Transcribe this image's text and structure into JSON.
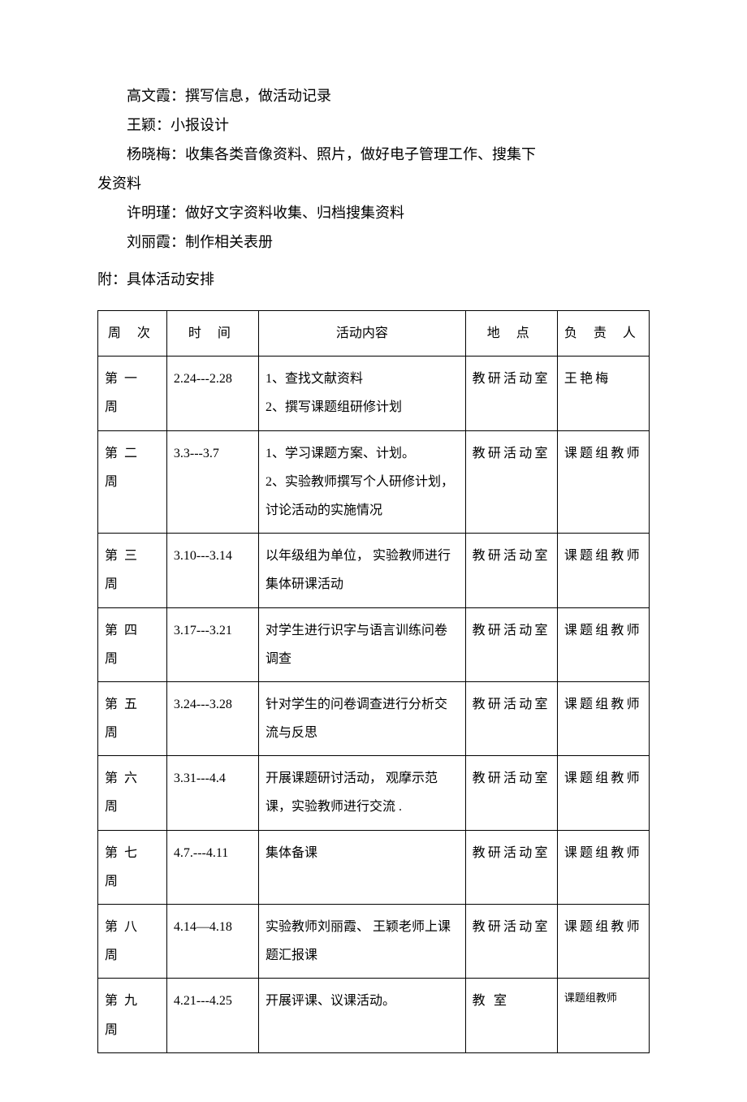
{
  "paragraphs": [
    {
      "text": "高文霞：撰写信息，做活动记录",
      "indent": true
    },
    {
      "text": "王颖：小报设计",
      "indent": true
    },
    {
      "text": "杨晓梅：收集各类音像资料、照片，做好电子管理工作、搜集下",
      "indent": true
    },
    {
      "text": "发资料",
      "indent": false
    },
    {
      "text": "许明瑾：做好文字资料收集、归档搜集资料",
      "indent": true
    },
    {
      "text": "刘丽霞：制作相关表册",
      "indent": true
    }
  ],
  "section_title": "附：具体活动安排",
  "table": {
    "headers": {
      "week": "周 次",
      "time": "时 间",
      "content": "活动内容",
      "location": "地  点",
      "person": "负 责 人"
    },
    "rows": [
      {
        "week": "第一周",
        "time": "2.24---2.28",
        "content": "1、查找文献资料\n2、撰写课题组研修计划",
        "location": "教研活动室",
        "person": "王艳梅"
      },
      {
        "week": "第二周",
        "time": "3.3---3.7",
        "content": "1、学习课题方案、计划。\n2、实验教师撰写个人研修计划，讨论活动的实施情况",
        "location": "教研活动室",
        "person": "课题组教师"
      },
      {
        "week": "第三周",
        "time": "3.10---3.14",
        "content": "以年级组为单位， 实验教师进行集体研课活动",
        "location": "教研活动室",
        "person": "课题组教师"
      },
      {
        "week": "第四周",
        "time": "3.17---3.21",
        "content": "对学生进行识字与语言训练问卷调查",
        "location": "教研活动室",
        "person": "课题组教师"
      },
      {
        "week": "第五周",
        "time": "3.24---3.28",
        "content": "针对学生的问卷调查进行分析交流与反思",
        "location": "教研活动室",
        "person": "课题组教师"
      },
      {
        "week": "第六周",
        "time": "3.31---4.4",
        "content": "开展课题研讨活动， 观摩示范课，实验教师进行交流 .",
        "location": "教研活动室",
        "person": "课题组教师"
      },
      {
        "week": "第七周",
        "time": "4.7.---4.11",
        "content": "集体备课",
        "location": "教研活动室",
        "person": "课题组教师"
      },
      {
        "week": "第八周",
        "time": "4.14—4.18",
        "content": "实验教师刘丽霞、 王颖老师上课题汇报课",
        "location": "教研活动室",
        "person": "课题组教师"
      },
      {
        "week": "第九周",
        "time": "4.21---4.25",
        "content": "开展评课、议课活动。",
        "location": "教  室",
        "person": "课题组教师",
        "person_small": true
      }
    ]
  }
}
